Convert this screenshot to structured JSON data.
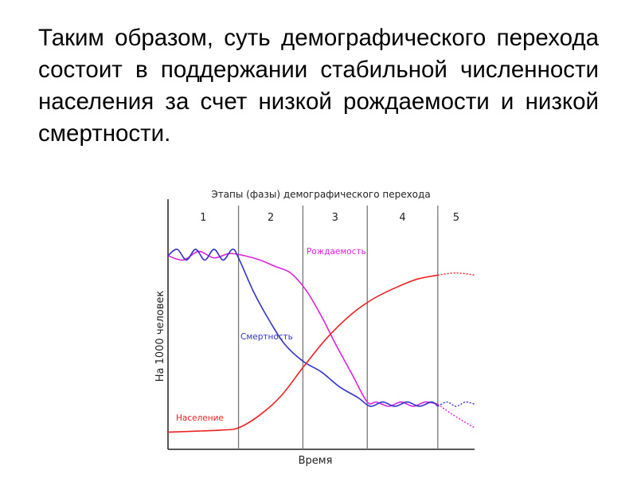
{
  "slide": {
    "paragraph": "Таким образом, суть демографического перехода состоит в поддержании стабильной численности населения за счет низкой рождаемости и низкой смертности."
  },
  "chart_data": {
    "type": "line",
    "title": "Этапы (фазы) демографического перехода",
    "xlabel": "Время",
    "ylabel": "На 1000 человек",
    "grid": false,
    "stages": [
      "1",
      "2",
      "3",
      "4",
      "5"
    ],
    "x_range": [
      0,
      100
    ],
    "y_range": [
      0,
      100
    ],
    "stage_boundaries": [
      23,
      44,
      65,
      88
    ],
    "series": [
      {
        "name": "Рождаемость",
        "color": "#dd22dd",
        "points": [
          [
            0,
            90
          ],
          [
            5,
            88
          ],
          [
            10,
            92
          ],
          [
            15,
            89
          ],
          [
            20,
            91
          ],
          [
            25,
            90
          ],
          [
            30,
            88
          ],
          [
            35,
            85
          ],
          [
            40,
            82
          ],
          [
            45,
            74
          ],
          [
            50,
            62
          ],
          [
            55,
            48
          ],
          [
            60,
            35
          ],
          [
            65,
            22
          ],
          [
            68,
            22
          ],
          [
            72,
            20
          ],
          [
            76,
            22
          ],
          [
            80,
            20
          ],
          [
            84,
            22
          ],
          [
            88,
            21
          ]
        ],
        "projection": [
          [
            88,
            21
          ],
          [
            93,
            16
          ],
          [
            100,
            10
          ]
        ]
      },
      {
        "name": "Смертность",
        "color": "#3333cc",
        "points": [
          [
            0,
            90
          ],
          [
            3,
            93
          ],
          [
            6,
            88
          ],
          [
            9,
            93
          ],
          [
            12,
            88
          ],
          [
            15,
            93
          ],
          [
            18,
            88
          ],
          [
            21,
            93
          ],
          [
            23,
            89
          ],
          [
            28,
            73
          ],
          [
            33,
            60
          ],
          [
            38,
            49
          ],
          [
            44,
            41
          ],
          [
            50,
            36
          ],
          [
            56,
            29
          ],
          [
            62,
            24
          ],
          [
            66,
            20
          ],
          [
            70,
            22
          ],
          [
            74,
            20
          ],
          [
            78,
            22
          ],
          [
            82,
            20
          ],
          [
            86,
            22
          ],
          [
            88,
            20
          ]
        ],
        "projection": [
          [
            88,
            20
          ],
          [
            91,
            22
          ],
          [
            94,
            20
          ],
          [
            97,
            22
          ],
          [
            100,
            21
          ]
        ]
      },
      {
        "name": "Население",
        "color": "#ee2222",
        "points": [
          [
            0,
            8
          ],
          [
            10,
            8.5
          ],
          [
            18,
            9
          ],
          [
            23,
            10
          ],
          [
            30,
            16
          ],
          [
            37,
            25
          ],
          [
            44,
            38
          ],
          [
            52,
            52
          ],
          [
            60,
            63
          ],
          [
            67,
            70
          ],
          [
            74,
            75
          ],
          [
            81,
            79
          ],
          [
            88,
            81
          ]
        ],
        "projection": [
          [
            88,
            81
          ],
          [
            94,
            82
          ],
          [
            100,
            81
          ]
        ]
      }
    ]
  }
}
